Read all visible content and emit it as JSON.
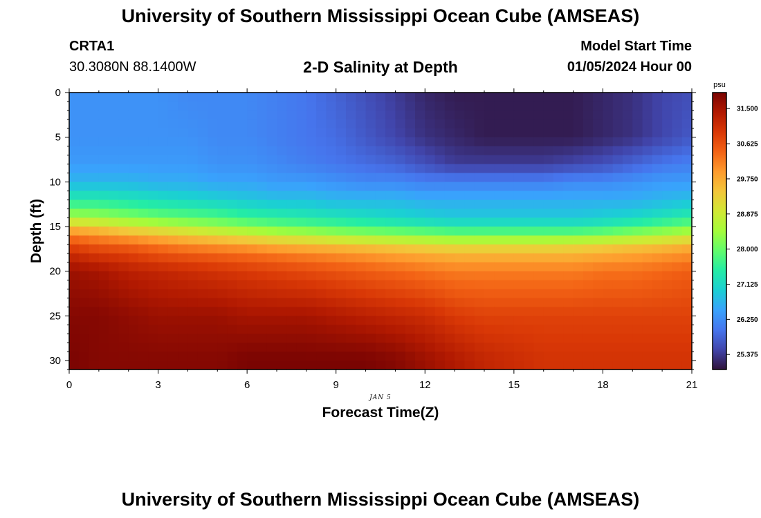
{
  "page": {
    "title_top": "University of Southern Mississippi Ocean Cube (AMSEAS)",
    "title_bottom": "University of Southern Mississippi Ocean Cube (AMSEAS)",
    "station": "CRTA1",
    "coords": "30.3080N  88.1400W",
    "chart_title": "2-D Salinity at Depth",
    "model_start_label": "Model Start Time",
    "model_start_value": "01/05/2024 Hour 00",
    "date_label": "JAN 5"
  },
  "colors": {
    "scale": [
      "#30123b",
      "#4145ab",
      "#4675ed",
      "#39a2fc",
      "#1bcfd4",
      "#24eca6",
      "#61fc6c",
      "#a4fc3b",
      "#d1e834",
      "#f3c63a",
      "#fe9b2d",
      "#f36315",
      "#d93806",
      "#b11901",
      "#7a0402"
    ]
  },
  "chart_data": {
    "type": "heatmap",
    "title": "2-D Salinity at Depth",
    "xlabel": "Forecast Time(Z)",
    "ylabel": "Depth (ft)",
    "xlim": [
      0,
      21
    ],
    "ylim": [
      0,
      31
    ],
    "xticks": [
      0,
      3,
      6,
      9,
      12,
      15,
      18,
      21
    ],
    "yticks": [
      0,
      5,
      10,
      15,
      20,
      25,
      30
    ],
    "colorbar": {
      "unit": "psu",
      "range": [
        25.0,
        31.9
      ],
      "ticks": [
        "31.500",
        "30.625",
        "29.750",
        "28.875",
        "28.000",
        "27.125",
        "26.250",
        "25.375"
      ]
    },
    "time_hours": [
      0,
      1,
      2,
      3,
      4,
      5,
      6,
      7,
      8,
      9,
      10,
      11,
      12,
      13,
      14,
      15,
      16,
      17,
      18,
      19,
      20,
      21
    ],
    "depth_ft": [
      0,
      5,
      8,
      10,
      12,
      14,
      15,
      16,
      17,
      18,
      20,
      25,
      30
    ],
    "salinity_psu": [
      [
        26.3,
        26.3,
        26.3,
        26.3,
        26.2,
        26.2,
        26.2,
        26.1,
        26.0,
        25.8,
        25.6,
        25.4,
        25.2,
        25.1,
        25.1,
        25.1,
        25.1,
        25.1,
        25.2,
        25.3,
        25.5,
        25.6
      ],
      [
        26.3,
        26.3,
        26.3,
        26.3,
        26.3,
        26.2,
        26.2,
        26.1,
        26.0,
        25.9,
        25.7,
        25.5,
        25.3,
        25.2,
        25.1,
        25.1,
        25.1,
        25.1,
        25.2,
        25.3,
        25.5,
        25.7
      ],
      [
        26.4,
        26.4,
        26.4,
        26.4,
        26.4,
        26.3,
        26.3,
        26.2,
        26.1,
        26.0,
        25.9,
        25.8,
        25.6,
        25.4,
        25.4,
        25.4,
        25.4,
        25.5,
        25.6,
        25.8,
        26.0,
        26.1
      ],
      [
        26.7,
        26.7,
        26.7,
        26.6,
        26.6,
        26.5,
        26.5,
        26.4,
        26.4,
        26.3,
        26.2,
        26.2,
        26.1,
        26.1,
        26.1,
        26.1,
        26.1,
        26.2,
        26.2,
        26.3,
        26.4,
        26.4
      ],
      [
        27.4,
        27.4,
        27.3,
        27.2,
        27.1,
        27.0,
        26.9,
        26.8,
        26.8,
        26.7,
        26.7,
        26.7,
        26.6,
        26.6,
        26.6,
        26.6,
        26.6,
        26.6,
        26.6,
        26.6,
        26.7,
        26.8
      ],
      [
        28.5,
        28.4,
        28.2,
        28.0,
        27.9,
        27.8,
        27.6,
        27.5,
        27.4,
        27.3,
        27.2,
        27.1,
        27.0,
        26.9,
        26.9,
        26.9,
        26.9,
        26.9,
        27.0,
        27.1,
        27.3,
        27.5
      ],
      [
        29.5,
        29.3,
        29.0,
        28.8,
        28.6,
        28.4,
        28.2,
        28.0,
        27.9,
        27.8,
        27.7,
        27.6,
        27.5,
        27.4,
        27.4,
        27.4,
        27.4,
        27.4,
        27.5,
        27.7,
        27.9,
        28.1
      ],
      [
        30.2,
        30.0,
        29.8,
        29.6,
        29.4,
        29.2,
        29.0,
        28.8,
        28.7,
        28.5,
        28.4,
        28.3,
        28.2,
        28.1,
        28.1,
        28.1,
        28.1,
        28.1,
        28.2,
        28.4,
        28.6,
        28.8
      ],
      [
        30.7,
        30.5,
        30.4,
        30.2,
        30.0,
        29.9,
        29.8,
        29.6,
        29.5,
        29.4,
        29.3,
        29.2,
        29.1,
        29.0,
        29.0,
        29.0,
        29.0,
        29.1,
        29.2,
        29.3,
        29.4,
        29.6
      ],
      [
        31.1,
        30.9,
        30.8,
        30.6,
        30.5,
        30.4,
        30.3,
        30.2,
        30.1,
        30.0,
        29.9,
        29.8,
        29.7,
        29.6,
        29.6,
        29.6,
        29.6,
        29.6,
        29.7,
        29.8,
        29.9,
        30.0
      ],
      [
        31.6,
        31.5,
        31.3,
        31.2,
        31.1,
        31.0,
        30.9,
        30.8,
        30.7,
        30.6,
        30.5,
        30.4,
        30.3,
        30.2,
        30.2,
        30.2,
        30.2,
        30.2,
        30.3,
        30.3,
        30.4,
        30.5
      ],
      [
        31.8,
        31.8,
        31.7,
        31.6,
        31.6,
        31.6,
        31.5,
        31.5,
        31.5,
        31.4,
        31.3,
        31.2,
        31.1,
        30.9,
        30.8,
        30.8,
        30.8,
        30.8,
        30.8,
        30.8,
        30.8,
        30.8
      ],
      [
        31.9,
        31.8,
        31.8,
        31.8,
        31.8,
        31.8,
        31.9,
        31.9,
        31.9,
        31.9,
        31.9,
        31.8,
        31.6,
        31.4,
        31.2,
        31.1,
        31.0,
        31.0,
        31.0,
        31.0,
        31.0,
        31.0
      ]
    ]
  }
}
